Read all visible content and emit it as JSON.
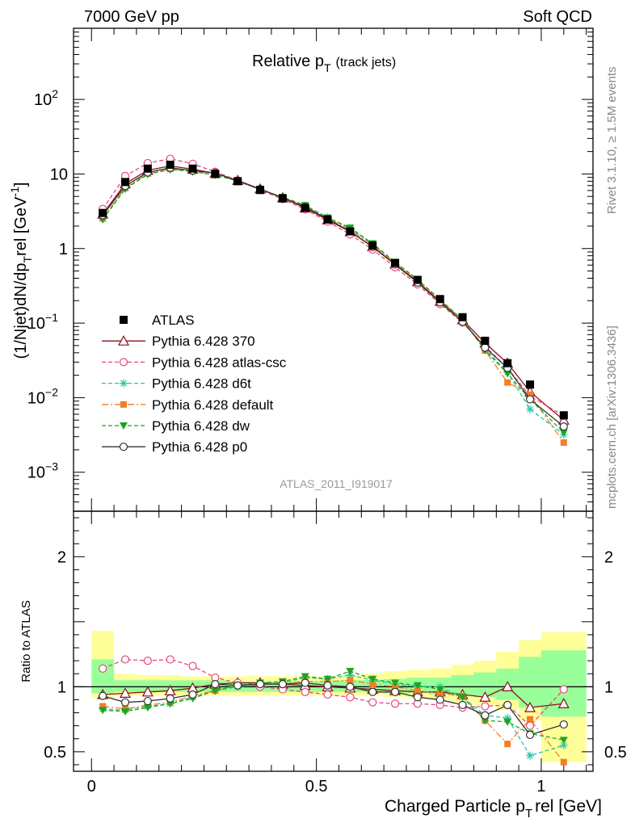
{
  "header": {
    "left": "7000 GeV pp",
    "right": "Soft QCD"
  },
  "side_text": {
    "rivet": "Rivet 3.1.10, ≥ 1.5M events",
    "mcplots": "mcplots.cern.ch [arXiv:1306.3436]"
  },
  "chart_data": [
    {
      "type": "line",
      "panel": "main",
      "title": "Relative p",
      "title_sub": "T",
      "title_note": "(track jets)",
      "ylabel": "(1/Njet)dN/dp",
      "ylabel_sub": "T",
      "ylabel_tail": "rel [GeV",
      "ylabel_sup": "-1",
      "ylabel_tail2": "]",
      "y_scale": "log",
      "xlim": [
        -0.04,
        1.115
      ],
      "ylim": [
        0.0003,
        900
      ],
      "watermark": "ATLAS_2011_I919017",
      "y_ticks": [
        {
          "value": 100,
          "base": "10",
          "exp": "2"
        },
        {
          "value": 10,
          "base": "10",
          "exp": ""
        },
        {
          "value": 1,
          "base": "1",
          "exp": ""
        },
        {
          "value": 0.1,
          "base": "10",
          "exp": "−1"
        },
        {
          "value": 0.01,
          "base": "10",
          "exp": "−2"
        },
        {
          "value": 0.001,
          "base": "10",
          "exp": "−3"
        }
      ],
      "x": [
        0.025,
        0.075,
        0.125,
        0.175,
        0.225,
        0.275,
        0.325,
        0.375,
        0.425,
        0.475,
        0.525,
        0.575,
        0.625,
        0.675,
        0.725,
        0.775,
        0.825,
        0.875,
        0.925,
        0.975,
        1.05
      ],
      "data": {
        "name": "ATLAS",
        "values": [
          3.0,
          7.8,
          11.8,
          13.3,
          11.8,
          10.0,
          8.0,
          6.1,
          4.7,
          3.5,
          2.45,
          1.7,
          1.1,
          0.64,
          0.38,
          0.21,
          0.12,
          0.058,
          0.029,
          0.015,
          0.0058
        ]
      },
      "series": [
        {
          "name": "Pythia 6.428 370",
          "color": "#8b0f1e",
          "dash": "",
          "marker": "triangle-open",
          "values": [
            2.9,
            7.4,
            11.2,
            12.8,
            11.6,
            10.2,
            8.2,
            6.3,
            4.8,
            3.5,
            2.42,
            1.68,
            1.06,
            0.62,
            0.36,
            0.195,
            0.111,
            0.054,
            0.029,
            0.012,
            0.005
          ]
        },
        {
          "name": "Pythia 6.428 atlas-csc",
          "color": "#e8467a",
          "dash": "5,3",
          "marker": "circle-open",
          "values": [
            3.4,
            9.4,
            14.0,
            16.0,
            13.7,
            10.7,
            8.2,
            6.1,
            4.6,
            3.35,
            2.3,
            1.55,
            0.97,
            0.56,
            0.33,
            0.18,
            0.102,
            0.049,
            0.025,
            0.0105,
            0.0057
          ]
        },
        {
          "name": "Pythia 6.428 d6t",
          "color": "#26c7a3",
          "dash": "5,3",
          "marker": "star",
          "values": [
            2.5,
            6.4,
            10.0,
            11.6,
            10.8,
            9.7,
            8.0,
            6.2,
            4.85,
            3.75,
            2.6,
            1.86,
            1.15,
            0.65,
            0.38,
            0.21,
            0.11,
            0.045,
            0.022,
            0.007,
            0.0032
          ]
        },
        {
          "name": "Pythia 6.428 default",
          "color": "#f07f28",
          "dash": "8,3,2,3",
          "marker": "square-filled",
          "values": [
            2.55,
            6.5,
            10.2,
            11.7,
            10.9,
            9.7,
            8.1,
            6.2,
            4.85,
            3.65,
            2.55,
            1.78,
            1.12,
            0.64,
            0.37,
            0.2,
            0.112,
            0.043,
            0.016,
            0.011,
            0.0025
          ]
        },
        {
          "name": "Pythia 6.428 dw",
          "color": "#1da51d",
          "dash": "5,3",
          "marker": "triangle-down-filled",
          "values": [
            2.45,
            6.3,
            9.9,
            11.5,
            10.8,
            9.75,
            8.05,
            6.25,
            4.9,
            3.8,
            2.6,
            1.9,
            1.17,
            0.66,
            0.385,
            0.205,
            0.11,
            0.043,
            0.021,
            0.0095,
            0.0034
          ]
        },
        {
          "name": "Pythia 6.428 p0",
          "color": "#333333",
          "dash": "",
          "marker": "circle-open",
          "values": [
            2.8,
            6.9,
            10.5,
            12.1,
            11.1,
            10.3,
            8.1,
            6.25,
            4.8,
            3.6,
            2.48,
            1.7,
            1.05,
            0.61,
            0.35,
            0.19,
            0.104,
            0.047,
            0.025,
            0.0095,
            0.0041
          ]
        }
      ]
    },
    {
      "type": "line",
      "panel": "ratio",
      "ylabel": "Ratio to ATLAS",
      "xlabel": "Charged Particle p",
      "xlabel_sub": "T",
      "xlabel_tail": "rel [GeV]",
      "xlim": [
        -0.04,
        1.115
      ],
      "ylim": [
        0.35,
        2.35
      ],
      "x_ticks": [
        {
          "value": 0,
          "label": "0"
        },
        {
          "value": 0.5,
          "label": "0.5"
        },
        {
          "value": 1,
          "label": "1"
        }
      ],
      "y_ticks": [
        {
          "value": 0.5,
          "label": "0.5"
        },
        {
          "value": 1,
          "label": "1"
        },
        {
          "value": 2,
          "label": "2"
        }
      ],
      "bin_edges": [
        0,
        0.05,
        0.1,
        0.15,
        0.2,
        0.25,
        0.3,
        0.35,
        0.4,
        0.45,
        0.5,
        0.55,
        0.6,
        0.65,
        0.7,
        0.75,
        0.8,
        0.85,
        0.9,
        0.95,
        1.0,
        1.1
      ],
      "band_yellow": [
        [
          0.91,
          1.43
        ],
        [
          0.93,
          1.1
        ],
        [
          0.93,
          1.09
        ],
        [
          0.93,
          1.09
        ],
        [
          0.93,
          1.08
        ],
        [
          0.93,
          1.08
        ],
        [
          0.93,
          1.08
        ],
        [
          0.93,
          1.08
        ],
        [
          0.93,
          1.08
        ],
        [
          0.93,
          1.08
        ],
        [
          0.93,
          1.08
        ],
        [
          0.93,
          1.09
        ],
        [
          0.93,
          1.1
        ],
        [
          0.92,
          1.12
        ],
        [
          0.91,
          1.13
        ],
        [
          0.9,
          1.14
        ],
        [
          0.88,
          1.17
        ],
        [
          0.86,
          1.2
        ],
        [
          0.82,
          1.27
        ],
        [
          0.74,
          1.36
        ],
        [
          0.42,
          1.42
        ]
      ],
      "band_green": [
        [
          0.95,
          1.21
        ],
        [
          0.96,
          1.05
        ],
        [
          0.96,
          1.05
        ],
        [
          0.96,
          1.05
        ],
        [
          0.96,
          1.05
        ],
        [
          0.96,
          1.05
        ],
        [
          0.96,
          1.04
        ],
        [
          0.96,
          1.04
        ],
        [
          0.96,
          1.04
        ],
        [
          0.96,
          1.04
        ],
        [
          0.96,
          1.04
        ],
        [
          0.96,
          1.05
        ],
        [
          0.96,
          1.05
        ],
        [
          0.95,
          1.06
        ],
        [
          0.95,
          1.07
        ],
        [
          0.94,
          1.07
        ],
        [
          0.93,
          1.09
        ],
        [
          0.92,
          1.11
        ],
        [
          0.9,
          1.14
        ],
        [
          0.84,
          1.23
        ],
        [
          0.77,
          1.28
        ]
      ],
      "x": [
        0.025,
        0.075,
        0.125,
        0.175,
        0.225,
        0.275,
        0.325,
        0.375,
        0.425,
        0.475,
        0.525,
        0.575,
        0.625,
        0.675,
        0.725,
        0.775,
        0.825,
        0.875,
        0.925,
        0.975,
        1.05
      ],
      "series": [
        {
          "name": "Pythia 6.428 370",
          "values": [
            0.94,
            0.95,
            0.96,
            0.97,
            0.99,
            1.02,
            1.03,
            1.03,
            1.02,
            1.01,
            1.0,
            0.99,
            0.98,
            0.97,
            0.96,
            0.96,
            0.94,
            0.92,
            1.0,
            0.84,
            0.87
          ]
        },
        {
          "name": "Pythia 6.428 atlas-csc",
          "values": [
            1.14,
            1.21,
            1.2,
            1.21,
            1.16,
            1.07,
            1.03,
            1.0,
            0.98,
            0.96,
            0.94,
            0.92,
            0.88,
            0.87,
            0.87,
            0.86,
            0.84,
            0.85,
            0.86,
            0.7,
            0.98
          ]
        },
        {
          "name": "Pythia 6.428 d6t",
          "values": [
            0.83,
            0.82,
            0.85,
            0.87,
            0.92,
            0.97,
            1.0,
            1.02,
            1.03,
            1.07,
            1.06,
            1.09,
            1.05,
            1.02,
            1.0,
            1.0,
            0.92,
            0.78,
            0.76,
            0.47,
            0.55
          ]
        },
        {
          "name": "Pythia 6.428 default",
          "values": [
            0.85,
            0.83,
            0.86,
            0.88,
            0.93,
            0.97,
            1.01,
            1.02,
            1.03,
            1.04,
            1.04,
            1.05,
            1.02,
            1.0,
            0.97,
            0.95,
            0.93,
            0.74,
            0.56,
            0.75,
            0.42
          ]
        },
        {
          "name": "Pythia 6.428 dw",
          "values": [
            0.82,
            0.81,
            0.84,
            0.87,
            0.91,
            0.97,
            1.01,
            1.03,
            1.04,
            1.08,
            1.06,
            1.12,
            1.06,
            1.03,
            1.01,
            0.98,
            0.92,
            0.74,
            0.73,
            0.64,
            0.59
          ]
        },
        {
          "name": "Pythia 6.428 p0",
          "values": [
            0.93,
            0.88,
            0.89,
            0.91,
            0.94,
            1.02,
            1.01,
            1.02,
            1.02,
            1.03,
            1.01,
            1.0,
            0.96,
            0.96,
            0.92,
            0.9,
            0.86,
            0.78,
            0.86,
            0.63,
            0.71
          ]
        }
      ]
    }
  ]
}
